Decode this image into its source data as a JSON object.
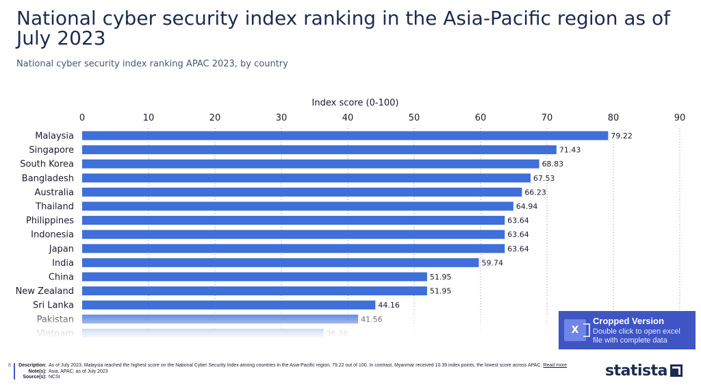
{
  "header": {
    "title": "National cyber security index ranking in the Asia-Pacific region as of July 2023",
    "subtitle": "National cyber security index ranking APAC 2023, by country"
  },
  "chart_data": {
    "type": "bar",
    "orientation": "horizontal",
    "xlabel": "Index score (0-100)",
    "xlim": [
      0,
      90
    ],
    "ticks": [
      0,
      10,
      20,
      30,
      40,
      50,
      60,
      70,
      80,
      90
    ],
    "grid": true,
    "categories": [
      "Malaysia",
      "Singapore",
      "South Korea",
      "Bangladesh",
      "Australia",
      "Thailand",
      "Philippines",
      "Indonesia",
      "Japan",
      "India",
      "China",
      "New Zealand",
      "Sri Lanka",
      "Pakistan",
      "Vietnam"
    ],
    "values": [
      79.22,
      71.43,
      68.83,
      67.53,
      66.23,
      64.94,
      63.64,
      63.64,
      63.64,
      59.74,
      51.95,
      51.95,
      44.16,
      41.56,
      36.36
    ],
    "value_labels": [
      "79.22",
      "71.43",
      "68.83",
      "67.53",
      "66.23",
      "64.94",
      "63.64",
      "63.64",
      "63.64",
      "59.74",
      "51.95",
      "51.95",
      "44.16",
      "41.56",
      "36.36"
    ],
    "bar_color": "#3f6fd8"
  },
  "cropped_notice": {
    "title": "Cropped Version",
    "description": "Double click to open excel file with complete data",
    "icon": "excel-icon",
    "color": "#3f55c4"
  },
  "footer": {
    "page_number": "8",
    "description_key": "Description:",
    "description": "As of July 2023, Malaysia reached the highest score on the National Cyber Security Index among countries in the Asia-Pacific region, 79.22 out of 100. In contrast, Myanmar received 10.39 index points, the lowest score across APAC.",
    "read_more": "Read more",
    "notes_key": "Note(s):",
    "notes": "Asia, APAC; as of July 2023",
    "source_key": "Source(s):",
    "source": "NCSI"
  },
  "logo": {
    "text": "statista",
    "icon": "statista-logo-icon"
  }
}
